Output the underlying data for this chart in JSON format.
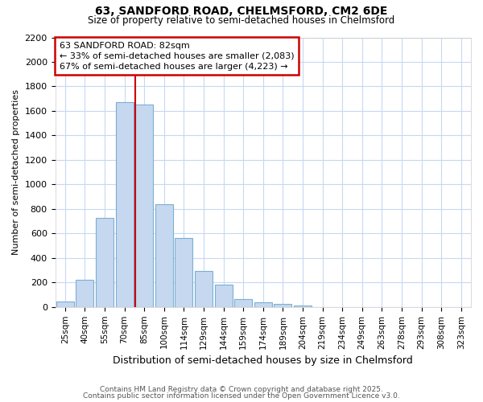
{
  "title1": "63, SANDFORD ROAD, CHELMSFORD, CM2 6DE",
  "title2": "Size of property relative to semi-detached houses in Chelmsford",
  "xlabel": "Distribution of semi-detached houses by size in Chelmsford",
  "ylabel": "Number of semi-detached properties",
  "categories": [
    "25sqm",
    "40sqm",
    "55sqm",
    "70sqm",
    "85sqm",
    "100sqm",
    "114sqm",
    "129sqm",
    "144sqm",
    "159sqm",
    "174sqm",
    "189sqm",
    "204sqm",
    "219sqm",
    "234sqm",
    "249sqm",
    "263sqm",
    "278sqm",
    "293sqm",
    "308sqm",
    "323sqm"
  ],
  "values": [
    45,
    225,
    730,
    1670,
    1650,
    840,
    560,
    295,
    180,
    65,
    35,
    25,
    15,
    0,
    0,
    0,
    0,
    0,
    0,
    0,
    0
  ],
  "bar_color": "#c5d8f0",
  "bar_edge_color": "#7bafd4",
  "vline_color": "#cc0000",
  "annotation_title": "63 SANDFORD ROAD: 82sqm",
  "annotation_line1": "← 33% of semi-detached houses are smaller (2,083)",
  "annotation_line2": "67% of semi-detached houses are larger (4,223) →",
  "annotation_box_color": "#ffffff",
  "annotation_box_edge": "#cc0000",
  "ylim": [
    0,
    2200
  ],
  "yticks": [
    0,
    200,
    400,
    600,
    800,
    1000,
    1200,
    1400,
    1600,
    1800,
    2000,
    2200
  ],
  "footer1": "Contains HM Land Registry data © Crown copyright and database right 2025.",
  "footer2": "Contains public sector information licensed under the Open Government Licence v3.0.",
  "bg_color": "#ffffff",
  "plot_bg_color": "#ffffff",
  "grid_color": "#c8d8f0"
}
